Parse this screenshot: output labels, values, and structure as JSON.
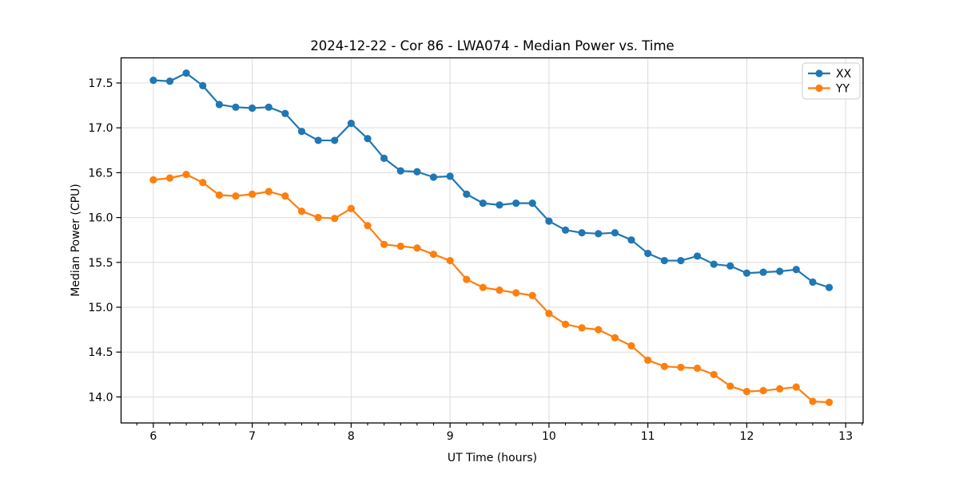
{
  "figure": {
    "background": "#ffffff",
    "accent_blue": "#1f77b4",
    "accent_orange": "#ff7f0e"
  },
  "chart_data": {
    "type": "line",
    "title": "2024-12-22 - Cor 86 - LWA074 - Median Power vs. Time",
    "xlabel": "UT Time (hours)",
    "ylabel": "Median Power (CPU)",
    "xlim": [
      5.674,
      13.176
    ],
    "ylim": [
      13.71,
      17.78
    ],
    "xticks": [
      6,
      7,
      8,
      9,
      10,
      11,
      12,
      13
    ],
    "yticks": [
      14.0,
      14.5,
      15.0,
      15.5,
      16.0,
      16.5,
      17.0,
      17.5
    ],
    "minor_xtick_interval_hours": 0.16667,
    "grid": true,
    "legend": {
      "position": "upper right"
    },
    "x": [
      6.0,
      6.167,
      6.333,
      6.5,
      6.667,
      6.833,
      7.0,
      7.167,
      7.333,
      7.5,
      7.667,
      7.833,
      8.0,
      8.167,
      8.333,
      8.5,
      8.667,
      8.833,
      9.0,
      9.167,
      9.333,
      9.5,
      9.667,
      9.833,
      10.0,
      10.167,
      10.333,
      10.5,
      10.667,
      10.833,
      11.0,
      11.167,
      11.333,
      11.5,
      11.667,
      11.833,
      12.0,
      12.167,
      12.333,
      12.5,
      12.667,
      12.833
    ],
    "series": [
      {
        "name": "XX",
        "color": "#1f77b4",
        "values": [
          17.53,
          17.52,
          17.61,
          17.47,
          17.26,
          17.23,
          17.22,
          17.23,
          17.16,
          16.96,
          16.86,
          16.86,
          17.05,
          16.88,
          16.66,
          16.52,
          16.51,
          16.45,
          16.46,
          16.26,
          16.16,
          16.14,
          16.16,
          16.16,
          15.96,
          15.86,
          15.83,
          15.82,
          15.83,
          15.75,
          15.6,
          15.52,
          15.52,
          15.57,
          15.48,
          15.46,
          15.38,
          15.39,
          15.4,
          15.42,
          15.28,
          15.22
        ]
      },
      {
        "name": "YY",
        "color": "#ff7f0e",
        "values": [
          16.42,
          16.44,
          16.48,
          16.39,
          16.25,
          16.24,
          16.26,
          16.29,
          16.24,
          16.07,
          16.0,
          15.99,
          16.1,
          15.91,
          15.7,
          15.68,
          15.66,
          15.59,
          15.52,
          15.31,
          15.22,
          15.19,
          15.16,
          15.13,
          14.93,
          14.81,
          14.77,
          14.75,
          14.66,
          14.57,
          14.41,
          14.34,
          14.33,
          14.32,
          14.25,
          14.12,
          14.06,
          14.07,
          14.09,
          14.11,
          13.95,
          13.94
        ]
      }
    ]
  }
}
